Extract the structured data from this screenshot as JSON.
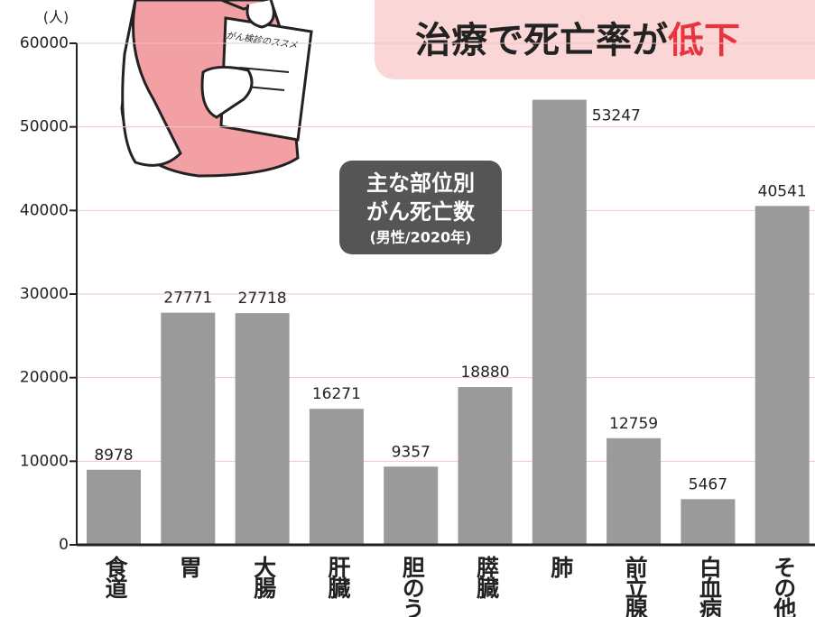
{
  "chart_data": {
    "type": "bar",
    "title": "治療で死亡率が",
    "title_highlight": "低下",
    "badge": [
      "主な部位別",
      "がん死亡数",
      "(男性/2020年)"
    ],
    "y_unit": "(人)",
    "illustration_text": "がん検診のススメ",
    "categories": [
      "食道",
      "胃",
      "大腸",
      "肝臓",
      "胆のう",
      "膵臓",
      "肺",
      "前立腺",
      "白血病",
      "その他"
    ],
    "values": [
      8978,
      27771,
      27718,
      16271,
      9357,
      18880,
      53247,
      12759,
      5467,
      40541
    ],
    "color": "#9a9a9a",
    "ylim": [
      0,
      60000
    ],
    "yticks": [
      0,
      10000,
      20000,
      30000,
      40000,
      50000,
      60000
    ],
    "grid": true
  }
}
